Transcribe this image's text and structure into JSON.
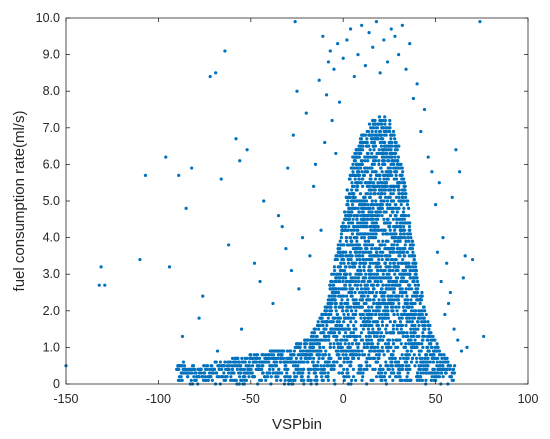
{
  "chart_data": {
    "type": "scatter",
    "title": "",
    "xlabel": "VSPbin",
    "ylabel": "fuel consumption rate(ml/s)",
    "xlim": [
      -150,
      100
    ],
    "ylim": [
      0,
      10
    ],
    "xticks": [
      -150,
      -100,
      -50,
      0,
      50,
      100
    ],
    "xtick_labels": [
      "-150",
      "-100",
      "-50",
      "0",
      "50",
      "100"
    ],
    "yticks": [
      0,
      1,
      2,
      3,
      4,
      5,
      6,
      7,
      8,
      9,
      10
    ],
    "ytick_labels": [
      "0",
      "1.0",
      "2.0",
      "3.0",
      "4.0",
      "5.0",
      "6.0",
      "7.0",
      "8.0",
      "9.0",
      "10.0"
    ],
    "grid": false,
    "legend": "none",
    "marker_color": "#0072BD",
    "marker": "filled circle",
    "series": [
      {
        "points": [
          [
            -150,
            0.5
          ],
          [
            -132,
            2.7
          ],
          [
            -131,
            3.2
          ],
          [
            -129,
            2.7
          ],
          [
            -110,
            3.4
          ],
          [
            -107,
            5.7
          ],
          [
            -96,
            6.2
          ],
          [
            -94,
            3.2
          ],
          [
            -89,
            5.7
          ],
          [
            -87,
            1.3
          ],
          [
            -85,
            4.8
          ],
          [
            -82,
            5.9
          ],
          [
            -78,
            1.8
          ],
          [
            -76,
            2.4
          ],
          [
            -72,
            8.4
          ],
          [
            -69,
            8.5
          ],
          [
            -68,
            0.9
          ],
          [
            -66,
            5.6
          ],
          [
            -64,
            9.1
          ],
          [
            -62,
            3.8
          ],
          [
            -58,
            6.7
          ],
          [
            -56,
            6.1
          ],
          [
            -55,
            1.5
          ],
          [
            -52,
            6.4
          ],
          [
            -48,
            3.3
          ],
          [
            -45,
            2.8
          ],
          [
            -43,
            5.0
          ],
          [
            -38,
            2.2
          ],
          [
            -35,
            4.6
          ],
          [
            -33,
            4.3
          ],
          [
            -31,
            3.7
          ],
          [
            -30,
            5.9
          ],
          [
            -28,
            3.1
          ],
          [
            -27,
            6.8
          ],
          [
            -26,
            9.9
          ],
          [
            -25,
            8.0
          ],
          [
            -24,
            2.6
          ],
          [
            -22,
            4.0
          ],
          [
            -20,
            7.4
          ],
          [
            -18,
            3.5
          ],
          [
            -16,
            5.4
          ],
          [
            -15,
            6.0
          ],
          [
            -13,
            8.3
          ],
          [
            -12,
            4.2
          ],
          [
            -11,
            9.5
          ],
          [
            -10,
            6.6
          ],
          [
            -9,
            7.9
          ],
          [
            -8,
            8.8
          ],
          [
            -7,
            9.1
          ],
          [
            -6,
            7.2
          ],
          [
            -5,
            8.6
          ],
          [
            -4,
            6.3
          ],
          [
            -3,
            9.3
          ],
          [
            -2,
            7.7
          ],
          [
            0,
            8.9
          ],
          [
            2,
            9.4
          ],
          [
            4,
            9.7
          ],
          [
            6,
            8.4
          ],
          [
            8,
            9.0
          ],
          [
            10,
            9.8
          ],
          [
            12,
            8.7
          ],
          [
            14,
            9.6
          ],
          [
            16,
            9.2
          ],
          [
            18,
            9.9
          ],
          [
            20,
            8.5
          ],
          [
            22,
            9.4
          ],
          [
            24,
            8.8
          ],
          [
            26,
            9.7
          ],
          [
            28,
            9.5
          ],
          [
            30,
            9.0
          ],
          [
            32,
            9.8
          ],
          [
            34,
            8.6
          ],
          [
            36,
            9.3
          ],
          [
            38,
            7.8
          ],
          [
            40,
            8.2
          ],
          [
            42,
            6.9
          ],
          [
            44,
            7.5
          ],
          [
            46,
            6.2
          ],
          [
            48,
            5.8
          ],
          [
            50,
            4.9
          ],
          [
            52,
            5.5
          ],
          [
            54,
            4.0
          ],
          [
            56,
            3.3
          ],
          [
            58,
            2.5
          ],
          [
            60,
            1.5
          ],
          [
            62,
            1.2
          ],
          [
            64,
            0.9
          ],
          [
            67,
            1.0
          ],
          [
            70,
            3.4
          ],
          [
            74,
            9.9
          ],
          [
            76,
            1.3
          ],
          [
            63,
            5.8
          ],
          [
            61,
            6.4
          ],
          [
            59,
            5.1
          ],
          [
            57,
            2.2
          ],
          [
            65,
            2.9
          ],
          [
            66,
            3.5
          ],
          [
            55,
            1.9
          ],
          [
            53,
            2.8
          ],
          [
            51,
            3.6
          ]
        ]
      }
    ],
    "dense_region": {
      "note": "dense band of overlapping points",
      "x_range": [
        -90,
        60
      ],
      "envelope": [
        [
          -90,
          0.0,
          0.6
        ],
        [
          -80,
          0.0,
          0.5
        ],
        [
          -70,
          0.0,
          0.6
        ],
        [
          -60,
          0.0,
          0.7
        ],
        [
          -50,
          0.0,
          0.8
        ],
        [
          -40,
          0.0,
          0.9
        ],
        [
          -30,
          0.0,
          1.0
        ],
        [
          -20,
          0.0,
          1.2
        ],
        [
          -15,
          0.0,
          1.6
        ],
        [
          -10,
          0.0,
          2.1
        ],
        [
          -5,
          0.0,
          3.2
        ],
        [
          0,
          0.0,
          4.6
        ],
        [
          5,
          0.0,
          6.2
        ],
        [
          10,
          0.0,
          6.8
        ],
        [
          15,
          0.0,
          7.2
        ],
        [
          20,
          0.0,
          7.3
        ],
        [
          25,
          0.0,
          7.2
        ],
        [
          30,
          0.0,
          6.6
        ],
        [
          35,
          0.0,
          5.0
        ],
        [
          40,
          0.0,
          3.0
        ],
        [
          45,
          0.0,
          2.0
        ],
        [
          50,
          0.0,
          1.2
        ],
        [
          55,
          0.0,
          0.8
        ],
        [
          60,
          0.0,
          0.5
        ]
      ]
    }
  }
}
